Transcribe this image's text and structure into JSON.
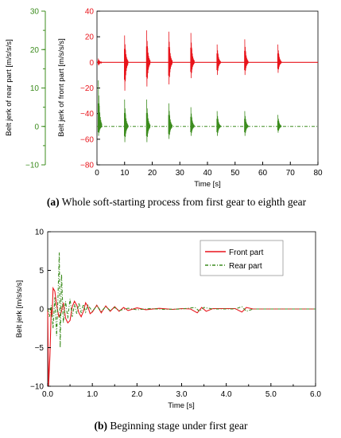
{
  "colors": {
    "front": "#e8141b",
    "rear": "#3c8c1e",
    "axis": "#000000"
  },
  "chart_data": [
    {
      "type": "line",
      "panel_label": "(a)",
      "caption": "Whole soft-starting process from first gear to eighth gear",
      "xlabel": "Time [s]",
      "xlim": [
        0,
        80
      ],
      "xticks": [
        "0",
        "10",
        "20",
        "30",
        "40",
        "50",
        "60",
        "70",
        "80"
      ],
      "ylabel_left": "Belt jerk of rear part [m/s/s/s]",
      "ylim_left": [
        -10,
        30
      ],
      "yticks_left": [
        "30",
        "20",
        "10",
        "0",
        "−10"
      ],
      "ylabel_right": "Belt jerk of front part [m/s/s/s]",
      "ylim_right": [
        -80,
        40
      ],
      "yticks_right": [
        "40",
        "20",
        "0",
        "−20",
        "−40",
        "−60",
        "−80"
      ],
      "grid": false,
      "series": [
        {
          "axis": "front",
          "baseline": 0,
          "burst_times": [
            0.5,
            10,
            18,
            26,
            34,
            43.5,
            53.5,
            65.5
          ],
          "burst_peaks": [
            3,
            21,
            25,
            24,
            23,
            14,
            18,
            14
          ],
          "burst_troughs": [
            -3,
            -27,
            -23,
            -21,
            -15,
            -12,
            -12,
            -10
          ]
        },
        {
          "axis": "rear",
          "baseline": 0,
          "burst_times": [
            0.5,
            10,
            18,
            26,
            34,
            43.5,
            53.5,
            65.5
          ],
          "burst_peaks": [
            12,
            7,
            7,
            6,
            5,
            4,
            4,
            3
          ],
          "burst_troughs": [
            -3,
            -5,
            -5,
            -4,
            -3,
            -3,
            -3,
            -2
          ]
        }
      ]
    },
    {
      "type": "line",
      "panel_label": "(b)",
      "caption": "Beginning stage under first gear",
      "xlabel": "Time [s]",
      "ylabel": "Belt jerk [m/s/s/s]",
      "xlim": [
        0,
        6
      ],
      "ylim": [
        -10,
        10
      ],
      "xticks": [
        "0.0",
        "1.0",
        "2.0",
        "3.0",
        "4.0",
        "5.0",
        "6.0"
      ],
      "yticks": [
        "10",
        "5",
        "0",
        "−5",
        "−10"
      ],
      "grid": false,
      "legend": "top-right",
      "series": [
        {
          "name": "Front part",
          "points": [
            [
              0,
              0
            ],
            [
              0.02,
              -10
            ],
            [
              0.05,
              -6
            ],
            [
              0.08,
              0
            ],
            [
              0.1,
              -1
            ],
            [
              0.12,
              2.7
            ],
            [
              0.16,
              2.3
            ],
            [
              0.2,
              0.5
            ],
            [
              0.25,
              -1
            ],
            [
              0.3,
              -0.5
            ],
            [
              0.35,
              0.8
            ],
            [
              0.4,
              -1.2
            ],
            [
              0.45,
              -1.8
            ],
            [
              0.5,
              -1.5
            ],
            [
              0.55,
              0.3
            ],
            [
              0.6,
              1.0
            ],
            [
              0.65,
              0.5
            ],
            [
              0.7,
              -0.5
            ],
            [
              0.75,
              -1.0
            ],
            [
              0.8,
              -0.3
            ],
            [
              0.85,
              0.8
            ],
            [
              0.9,
              0.3
            ],
            [
              0.95,
              -0.6
            ],
            [
              1.0,
              -0.4
            ],
            [
              1.1,
              0.5
            ],
            [
              1.2,
              -0.5
            ],
            [
              1.3,
              0.4
            ],
            [
              1.4,
              -0.3
            ],
            [
              1.5,
              0.3
            ],
            [
              1.6,
              -0.3
            ],
            [
              1.7,
              0.2
            ],
            [
              1.8,
              -0.2
            ],
            [
              2.0,
              0.15
            ],
            [
              2.2,
              -0.1
            ],
            [
              2.5,
              0.08
            ],
            [
              2.8,
              -0.05
            ],
            [
              3.0,
              0.05
            ],
            [
              3.2,
              0
            ],
            [
              3.35,
              -0.5
            ],
            [
              3.45,
              0.2
            ],
            [
              3.55,
              -0.3
            ],
            [
              3.7,
              0.05
            ],
            [
              4.2,
              0.05
            ],
            [
              4.35,
              -0.4
            ],
            [
              4.45,
              0.2
            ],
            [
              4.6,
              0
            ],
            [
              5.0,
              0
            ],
            [
              5.5,
              0
            ],
            [
              6.0,
              0
            ]
          ]
        },
        {
          "name": "Rear part",
          "points": [
            [
              0,
              0
            ],
            [
              0.04,
              -1.0
            ],
            [
              0.08,
              0.5
            ],
            [
              0.12,
              -2.5
            ],
            [
              0.16,
              1.5
            ],
            [
              0.2,
              -3.5
            ],
            [
              0.23,
              1.5
            ],
            [
              0.26,
              7.3
            ],
            [
              0.28,
              -5.0
            ],
            [
              0.31,
              4.5
            ],
            [
              0.35,
              -1.8
            ],
            [
              0.4,
              1.0
            ],
            [
              0.45,
              -1.2
            ],
            [
              0.5,
              1.3
            ],
            [
              0.55,
              -1.0
            ],
            [
              0.6,
              0.6
            ],
            [
              0.65,
              -0.6
            ],
            [
              0.7,
              0.8
            ],
            [
              0.75,
              -0.5
            ],
            [
              0.8,
              0.6
            ],
            [
              0.85,
              -0.4
            ],
            [
              0.9,
              0.5
            ],
            [
              1.0,
              -0.3
            ],
            [
              1.1,
              0.4
            ],
            [
              1.2,
              -0.3
            ],
            [
              1.3,
              0.3
            ],
            [
              1.4,
              -0.2
            ],
            [
              1.5,
              0.2
            ],
            [
              1.6,
              -0.2
            ],
            [
              1.8,
              0.1
            ],
            [
              2.0,
              -0.1
            ],
            [
              2.3,
              0.05
            ],
            [
              2.6,
              -0.05
            ],
            [
              3.0,
              0
            ],
            [
              3.3,
              0.2
            ],
            [
              3.4,
              -0.3
            ],
            [
              3.5,
              0.2
            ],
            [
              3.7,
              0
            ],
            [
              4.2,
              0
            ],
            [
              4.35,
              0.3
            ],
            [
              4.45,
              -0.3
            ],
            [
              4.6,
              0
            ],
            [
              5.0,
              0
            ],
            [
              6.0,
              0
            ]
          ]
        }
      ]
    }
  ]
}
